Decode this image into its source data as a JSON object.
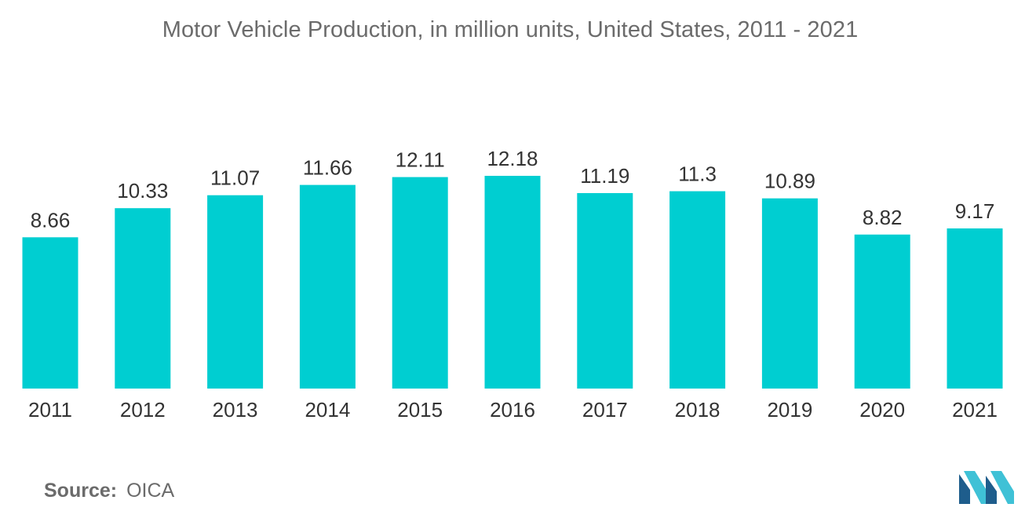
{
  "chart_data": {
    "type": "bar",
    "title": "Motor Vehicle Production, in million units, United States, 2011 - 2021",
    "xlabel": "",
    "ylabel": "",
    "categories": [
      "2011",
      "2012",
      "2013",
      "2014",
      "2015",
      "2016",
      "2017",
      "2018",
      "2019",
      "2020",
      "2021"
    ],
    "values": [
      8.66,
      10.33,
      11.07,
      11.66,
      12.11,
      12.18,
      11.19,
      11.3,
      10.89,
      8.82,
      9.17
    ],
    "value_labels": [
      "8.66",
      "10.33",
      "11.07",
      "11.66",
      "12.11",
      "12.18",
      "11.19",
      "11.3",
      "10.89",
      "8.82",
      "9.17"
    ],
    "ylim": [
      0,
      12.18
    ],
    "grid": false,
    "legend": "none",
    "bar_color": "#00ced1"
  },
  "footer": {
    "source_label": "Source:",
    "source_value": "OICA"
  },
  "logo": {
    "icon": "mordor-logo-icon",
    "colors": [
      "#1e5d8c",
      "#3fc1d6"
    ]
  }
}
